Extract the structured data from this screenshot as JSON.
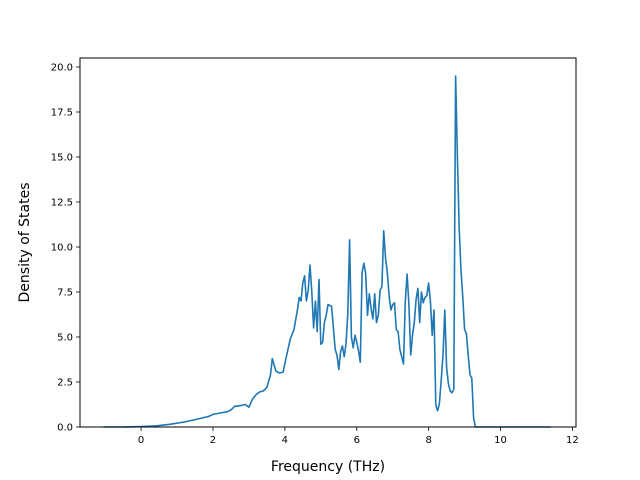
{
  "chart_data": {
    "type": "line",
    "xlabel": "Frequency (THz)",
    "ylabel": "Density of States",
    "xlim": [
      -1.7,
      12.1
    ],
    "ylim": [
      0,
      20.5
    ],
    "grid": false,
    "line_color": "#1f77b4",
    "x_ticks": [
      0,
      2,
      4,
      6,
      8,
      10,
      12
    ],
    "x_tick_labels": [
      "0",
      "2",
      "4",
      "6",
      "8",
      "10",
      "12"
    ],
    "y_ticks": [
      0,
      2.5,
      5,
      7.5,
      10,
      12.5,
      15,
      17.5,
      20
    ],
    "y_tick_labels": [
      "0.0",
      "2.5",
      "5.0",
      "7.5",
      "10.0",
      "12.5",
      "15.0",
      "17.5",
      "20.0"
    ],
    "series": [
      {
        "x": [
          -1.05,
          -0.5,
          0.0,
          0.4,
          0.8,
          1.2,
          1.6,
          1.9,
          2.0,
          2.2,
          2.4,
          2.5,
          2.6,
          2.8,
          2.9,
          3.0,
          3.1,
          3.2,
          3.3,
          3.4,
          3.5,
          3.6,
          3.65,
          3.75,
          3.85,
          3.95,
          4.05,
          4.15,
          4.25,
          4.35,
          4.4,
          4.45,
          4.5,
          4.55,
          4.6,
          4.65,
          4.7,
          4.75,
          4.8,
          4.85,
          4.9,
          4.95,
          5.0,
          5.05,
          5.1,
          5.15,
          5.2,
          5.3,
          5.35,
          5.4,
          5.45,
          5.5,
          5.55,
          5.6,
          5.65,
          5.7,
          5.75,
          5.8,
          5.85,
          5.9,
          5.95,
          6.0,
          6.05,
          6.1,
          6.15,
          6.2,
          6.25,
          6.3,
          6.35,
          6.4,
          6.45,
          6.5,
          6.55,
          6.6,
          6.65,
          6.7,
          6.75,
          6.8,
          6.85,
          6.9,
          6.95,
          7.0,
          7.05,
          7.1,
          7.15,
          7.2,
          7.25,
          7.3,
          7.35,
          7.4,
          7.45,
          7.5,
          7.55,
          7.6,
          7.65,
          7.7,
          7.75,
          7.8,
          7.85,
          7.9,
          7.95,
          8.0,
          8.05,
          8.1,
          8.15,
          8.2,
          8.25,
          8.3,
          8.35,
          8.4,
          8.45,
          8.5,
          8.55,
          8.6,
          8.65,
          8.7,
          8.75,
          8.8,
          8.85,
          8.9,
          8.95,
          9.0,
          9.05,
          9.1,
          9.15,
          9.2,
          9.25,
          9.3,
          9.35,
          9.4,
          9.45,
          9.5,
          9.55,
          9.6,
          9.65,
          9.7,
          9.75,
          9.8,
          9.85,
          9.9,
          9.95,
          10.0,
          10.05,
          10.1,
          10.15,
          10.2,
          10.25,
          10.3,
          10.35,
          10.4,
          10.5,
          11.0,
          11.4
        ],
        "y": [
          0.0,
          0.0,
          0.02,
          0.06,
          0.15,
          0.28,
          0.45,
          0.6,
          0.7,
          0.78,
          0.85,
          0.95,
          1.15,
          1.2,
          1.25,
          1.1,
          1.55,
          1.8,
          1.95,
          2.0,
          2.2,
          2.9,
          3.8,
          3.1,
          3.0,
          3.05,
          4.0,
          4.9,
          5.4,
          6.5,
          7.2,
          7.0,
          8.0,
          8.4,
          7.0,
          7.6,
          9.0,
          7.5,
          5.5,
          7.0,
          5.3,
          8.2,
          4.6,
          4.7,
          5.8,
          6.2,
          6.8,
          6.7,
          5.5,
          4.3,
          4.0,
          3.2,
          4.2,
          4.5,
          3.9,
          4.6,
          6.3,
          10.4,
          5.0,
          4.4,
          5.1,
          4.7,
          4.2,
          3.6,
          8.6,
          9.1,
          8.5,
          6.2,
          7.4,
          6.6,
          6.0,
          7.4,
          5.8,
          6.2,
          7.6,
          7.8,
          10.9,
          9.4,
          8.6,
          7.3,
          6.5,
          6.8,
          6.9,
          5.4,
          5.3,
          4.3,
          3.9,
          3.5,
          7.0,
          8.5,
          6.8,
          4.0,
          5.1,
          5.8,
          7.1,
          7.7,
          5.8,
          7.5,
          6.9,
          7.2,
          7.3,
          8.0,
          7.0,
          5.1,
          6.5,
          1.2,
          0.9,
          1.3,
          2.6,
          4.0,
          6.5,
          3.3,
          2.4,
          2.0,
          1.9,
          2.1,
          19.5,
          15.0,
          11.0,
          8.7,
          7.2,
          5.4,
          5.2,
          4.0,
          2.9,
          2.7,
          0.5,
          0.0,
          0.0,
          0.0,
          0.0,
          0.0,
          0.0,
          0.0,
          0.0,
          0.0,
          0.0,
          0.0,
          0.0,
          0.0,
          0.0,
          0.0,
          0.0,
          0.0,
          0.0,
          0.0,
          0.0,
          0.0,
          0.0,
          0.0,
          0.0,
          0.0,
          0.0
        ]
      }
    ]
  }
}
